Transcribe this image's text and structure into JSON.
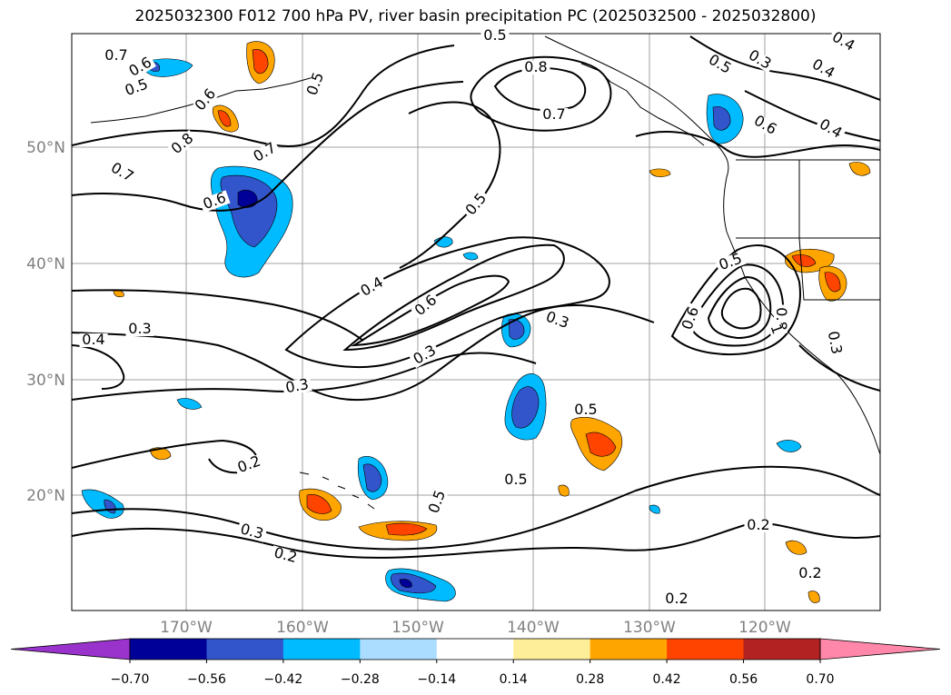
{
  "title": "2025032300 F012 700 hPa PV, river basin precipitation PC (2025032500 - 2025032800)",
  "lat_labels": [
    "50°N",
    "40°N",
    "30°N",
    "20°N"
  ],
  "lon_labels": [
    "170°W",
    "160°W",
    "150°W",
    "140°W",
    "130°W",
    "120°W"
  ],
  "contour_labels": [
    "0.7",
    "0.6",
    "0.5",
    "0.6",
    "0.8",
    "0.5",
    "0.8",
    "0.7",
    "0.5",
    "0.4",
    "0.3",
    "0.4",
    "0.5",
    "0.6",
    "0.4",
    "0.7",
    "0.6",
    "0.7",
    "0.5",
    "0.4",
    "0.6",
    "0.3",
    "0.3",
    "0.4",
    "0.3",
    "0.3",
    "0.5",
    "0.6",
    "0.5",
    "0.8",
    "1",
    "0.3",
    "0.2",
    "0.5",
    "0.5",
    "0.3",
    "0.2",
    "0.2",
    "0.2",
    "0.2"
  ],
  "colorbar": {
    "colors": [
      "#9933cc",
      "#000099",
      "#3355cc",
      "#00bbff",
      "#aaddff",
      "#ffffff",
      "#ffee99",
      "#ffa500",
      "#ff4400",
      "#b22222",
      "#ff88aa"
    ],
    "tick_labels": [
      "−0.70",
      "−0.56",
      "−0.42",
      "−0.28",
      "−0.14",
      "0.14",
      "0.28",
      "0.42",
      "0.56",
      "0.70"
    ]
  }
}
